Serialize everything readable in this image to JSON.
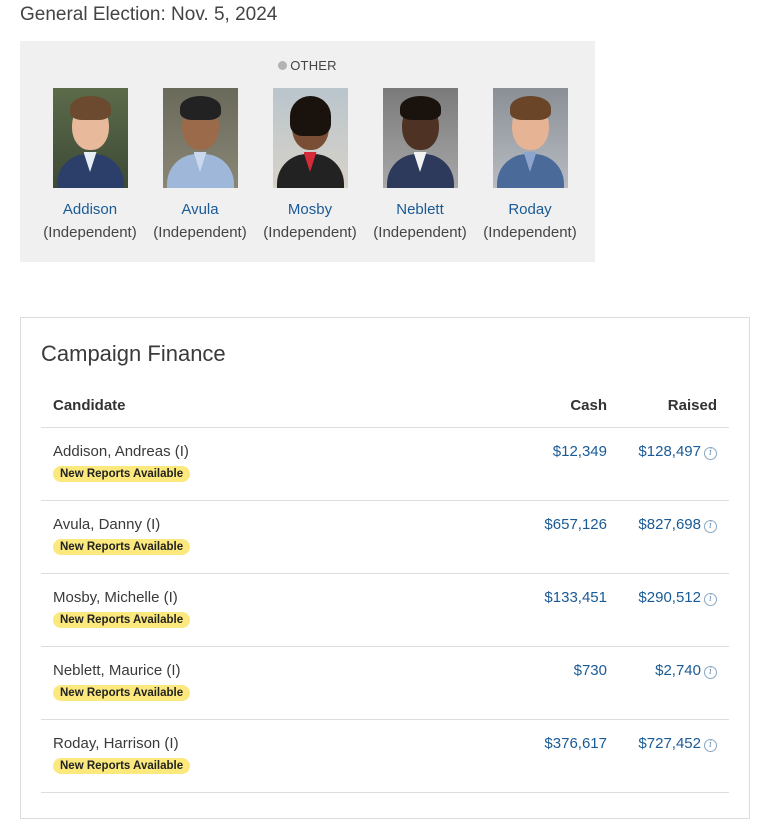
{
  "election": {
    "title": "General Election: Nov. 5, 2024"
  },
  "panel": {
    "party_label": "OTHER",
    "candidates": [
      {
        "name": "Addison",
        "party": "(Independent)"
      },
      {
        "name": "Avula",
        "party": "(Independent)"
      },
      {
        "name": "Mosby",
        "party": "(Independent)"
      },
      {
        "name": "Neblett",
        "party": "(Independent)"
      },
      {
        "name": "Roday",
        "party": "(Independent)"
      }
    ]
  },
  "finance": {
    "title": "Campaign Finance",
    "headers": {
      "candidate": "Candidate",
      "cash": "Cash",
      "raised": "Raised"
    },
    "badge_label": "New Reports Available",
    "rows": [
      {
        "candidate": "Addison, Andreas (I)",
        "cash": "$12,349",
        "raised": "$128,497"
      },
      {
        "candidate": "Avula, Danny (I)",
        "cash": "$657,126",
        "raised": "$827,698"
      },
      {
        "candidate": "Mosby, Michelle (I)",
        "cash": "$133,451",
        "raised": "$290,512"
      },
      {
        "candidate": "Neblett, Maurice (I)",
        "cash": "$730",
        "raised": "$2,740"
      },
      {
        "candidate": "Roday, Harrison (I)",
        "cash": "$376,617",
        "raised": "$727,452"
      }
    ]
  },
  "colors": {
    "link": "#1a5a96",
    "badge": "#fbe97e",
    "panel_bg": "#f0f0f0"
  }
}
